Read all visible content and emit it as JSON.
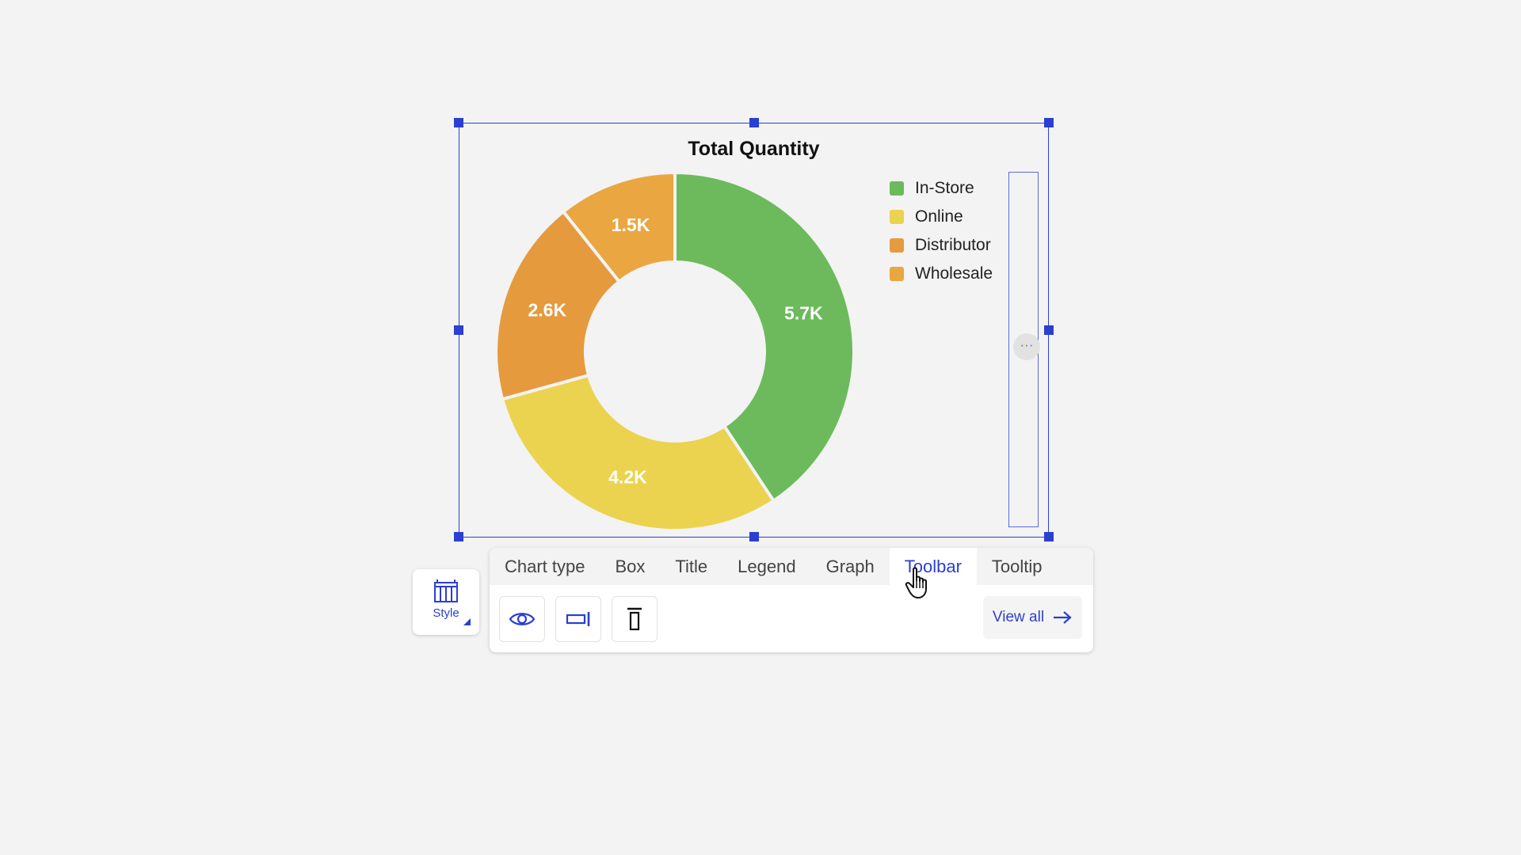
{
  "chart_data": {
    "type": "pie",
    "title": "Total Quantity",
    "categories": [
      "In-Store",
      "Online",
      "Distributor",
      "Wholesale"
    ],
    "values": [
      5.7,
      4.2,
      2.6,
      1.5
    ],
    "value_labels": [
      "5.7K",
      "4.2K",
      "2.6K",
      "1.5K"
    ],
    "colors": [
      "#6cba5c",
      "#ebd350",
      "#e69a3e",
      "#eaa640"
    ],
    "donut": true,
    "legend_position": "top-right"
  },
  "toolbar": {
    "tabs": [
      "Chart type",
      "Box",
      "Title",
      "Legend",
      "Graph",
      "Toolbar",
      "Tooltip"
    ],
    "active_tab": "Toolbar",
    "view_all_label": "View all",
    "style_label": "Style",
    "more_label": "···"
  },
  "icons": {
    "style": "grid-style-icon",
    "visibility": "eye-icon",
    "position": "align-right-icon",
    "placement": "align-top-icon",
    "view_all": "arrow-right-icon",
    "cursor": "hand-pointer-icon"
  }
}
